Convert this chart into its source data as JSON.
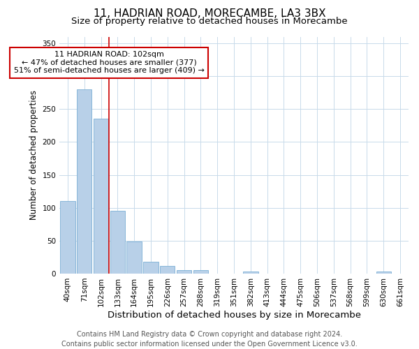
{
  "title1": "11, HADRIAN ROAD, MORECAMBE, LA3 3BX",
  "title2": "Size of property relative to detached houses in Morecambe",
  "xlabel": "Distribution of detached houses by size in Morecambe",
  "ylabel": "Number of detached properties",
  "categories": [
    "40sqm",
    "71sqm",
    "102sqm",
    "133sqm",
    "164sqm",
    "195sqm",
    "226sqm",
    "257sqm",
    "288sqm",
    "319sqm",
    "351sqm",
    "382sqm",
    "413sqm",
    "444sqm",
    "475sqm",
    "506sqm",
    "537sqm",
    "568sqm",
    "599sqm",
    "630sqm",
    "661sqm"
  ],
  "values": [
    110,
    280,
    235,
    95,
    49,
    18,
    12,
    5,
    5,
    0,
    0,
    3,
    0,
    0,
    0,
    0,
    0,
    0,
    0,
    3,
    0
  ],
  "bar_color": "#b8d0e8",
  "bar_edge_color": "#7aaed4",
  "red_line_x": 2.5,
  "ylim": [
    0,
    360
  ],
  "yticks": [
    0,
    50,
    100,
    150,
    200,
    250,
    300,
    350
  ],
  "annotation_text": "11 HADRIAN ROAD: 102sqm\n← 47% of detached houses are smaller (377)\n51% of semi-detached houses are larger (409) →",
  "annotation_box_color": "#ffffff",
  "annotation_box_edge": "#cc0000",
  "footer_text": "Contains HM Land Registry data © Crown copyright and database right 2024.\nContains public sector information licensed under the Open Government Licence v3.0.",
  "bg_color": "#ffffff",
  "grid_color": "#c8daea",
  "title1_fontsize": 11,
  "title2_fontsize": 9.5,
  "xlabel_fontsize": 9.5,
  "ylabel_fontsize": 8.5,
  "tick_fontsize": 7.5,
  "annotation_fontsize": 8,
  "footer_fontsize": 7
}
